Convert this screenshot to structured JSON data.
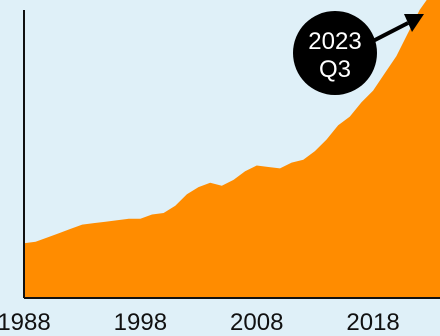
{
  "chart_data": {
    "type": "area",
    "title": "",
    "xlabel": "",
    "ylabel": "",
    "x_ticks": [
      1988,
      1998,
      2008,
      2018
    ],
    "xlim": [
      1988,
      2023.75
    ],
    "ylim": [
      0,
      100
    ],
    "grid": false,
    "legend": "none",
    "series": [
      {
        "points": [
          {
            "x": 1988,
            "y": 19
          },
          {
            "x": 1989,
            "y": 19.5
          },
          {
            "x": 1990,
            "y": 21
          },
          {
            "x": 1991,
            "y": 22.5
          },
          {
            "x": 1992,
            "y": 24
          },
          {
            "x": 1993,
            "y": 25.5
          },
          {
            "x": 1994,
            "y": 26
          },
          {
            "x": 1995,
            "y": 26.5
          },
          {
            "x": 1996,
            "y": 27
          },
          {
            "x": 1997,
            "y": 27.5
          },
          {
            "x": 1998,
            "y": 27.5
          },
          {
            "x": 1999,
            "y": 29
          },
          {
            "x": 2000,
            "y": 29.5
          },
          {
            "x": 2001,
            "y": 32
          },
          {
            "x": 2002,
            "y": 36
          },
          {
            "x": 2003,
            "y": 38.5
          },
          {
            "x": 2004,
            "y": 40
          },
          {
            "x": 2005,
            "y": 39
          },
          {
            "x": 2006,
            "y": 41
          },
          {
            "x": 2007,
            "y": 44
          },
          {
            "x": 2008,
            "y": 46
          },
          {
            "x": 2009,
            "y": 45.5
          },
          {
            "x": 2010,
            "y": 45
          },
          {
            "x": 2011,
            "y": 47
          },
          {
            "x": 2012,
            "y": 48
          },
          {
            "x": 2013,
            "y": 51
          },
          {
            "x": 2014,
            "y": 55
          },
          {
            "x": 2015,
            "y": 60
          },
          {
            "x": 2016,
            "y": 63
          },
          {
            "x": 2017,
            "y": 68
          },
          {
            "x": 2018,
            "y": 72
          },
          {
            "x": 2019,
            "y": 78
          },
          {
            "x": 2020,
            "y": 84
          },
          {
            "x": 2021,
            "y": 92
          },
          {
            "x": 2022,
            "y": 100
          },
          {
            "x": 2023.75,
            "y": 110
          }
        ]
      }
    ],
    "annotation": {
      "line1": "2023",
      "line2": "Q3"
    }
  },
  "colors": {
    "background": "#dff0f8",
    "area_fill": "#ff8c00",
    "axis": "#111111",
    "callout_bg": "#000000",
    "callout_text": "#ffffff",
    "arrow": "#000000"
  }
}
